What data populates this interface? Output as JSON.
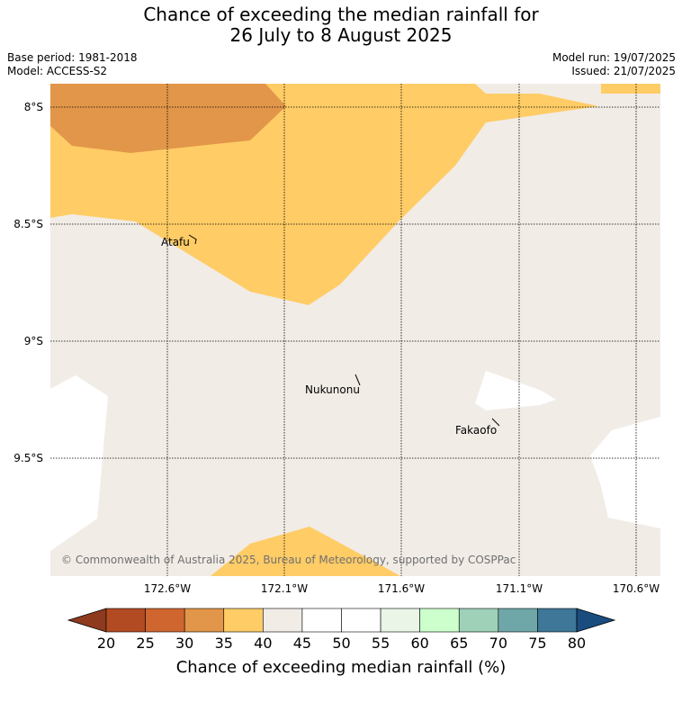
{
  "title_line1": "Chance of exceeding the median rainfall for",
  "title_line2": "26 July to 8 August 2025",
  "base_period": "Base period: 1981-2018",
  "model": "Model: ACCESS-S2",
  "model_run": "Model run: 19/07/2025",
  "issued": "Issued: 21/07/2025",
  "copyright": "© Commonwealth of Australia 2025, Bureau of Meteorology, supported by COSPPac",
  "lat_labels": [
    "8°S",
    "8.5°S",
    "9°S",
    "9.5°S"
  ],
  "lon_labels": [
    "172.6°W",
    "172.1°W",
    "171.6°W",
    "171.1°W",
    "170.6°W"
  ],
  "places": [
    {
      "name": "Atafu"
    },
    {
      "name": "Nukunonu"
    },
    {
      "name": "Fakaofo"
    }
  ],
  "colorbar": {
    "label": "Chance of exceeding median rainfall (%)",
    "ticks": [
      "20",
      "25",
      "30",
      "35",
      "40",
      "45",
      "50",
      "55",
      "60",
      "65",
      "70",
      "75",
      "80"
    ],
    "colors": {
      "under": "#8e3a1f",
      "c20_25": "#b24a22",
      "c25_30": "#cf6630",
      "c30_35": "#e29649",
      "c35_40": "#ffcc66",
      "c40_45": "#f1ece6",
      "c45_50": "#ffffff",
      "c50_55": "#ffffff",
      "c55_60": "#eaf5e8",
      "c60_65": "#ccffcc",
      "c65_70": "#9fd1b9",
      "c70_75": "#6fa7a8",
      "c75_80": "#3e7798",
      "over": "#1a4c80"
    }
  }
}
